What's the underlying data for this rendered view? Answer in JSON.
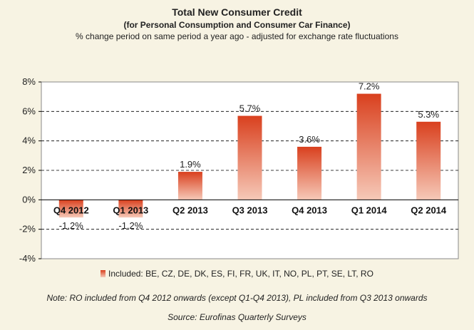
{
  "title": "Total New Consumer Credit",
  "subtitle": "(for Personal Consumption  and Consumer Car Finance)",
  "subtitle2": "% change  period on same period a year ago  - adjusted for exchange  rate fluctuations",
  "legend": "Included: BE, CZ, DE, DK, ES, FI, FR, UK, IT, NO, PL, PT, SE, LT, RO",
  "note": "Note: RO included from Q4 2012 onwards (except Q1-Q4 2013),  PL included from Q3 2013 onwards",
  "source": "Source: Eurofinas Quarterly Surveys",
  "colors": {
    "bar_top": "#d9401e",
    "bar_bottom": "#f6c9b8",
    "plot_bg": "#ffffff",
    "page_bg": "#f7f3e3"
  },
  "chart_data": {
    "type": "bar",
    "categories": [
      "Q4 2012",
      "Q1 2013",
      "Q2 2013",
      "Q3 2013",
      "Q4 2013",
      "Q1 2014",
      "Q2 2014"
    ],
    "values": [
      -1.2,
      -1.2,
      1.9,
      5.7,
      3.6,
      7.2,
      5.3
    ],
    "data_labels": [
      "-1.2%",
      "-1.2%",
      "1.9%",
      "5.7%",
      "3.6%",
      "7.2%",
      "5.3%"
    ],
    "ylim": [
      -4,
      8
    ],
    "yticks": [
      -4,
      -2,
      0,
      2,
      4,
      6,
      8
    ],
    "ytick_labels": [
      "-4%",
      "-2%",
      "0%",
      "2%",
      "4%",
      "6%",
      "8%"
    ],
    "grid": "dashed horizontal",
    "legend_position": "bottom"
  }
}
